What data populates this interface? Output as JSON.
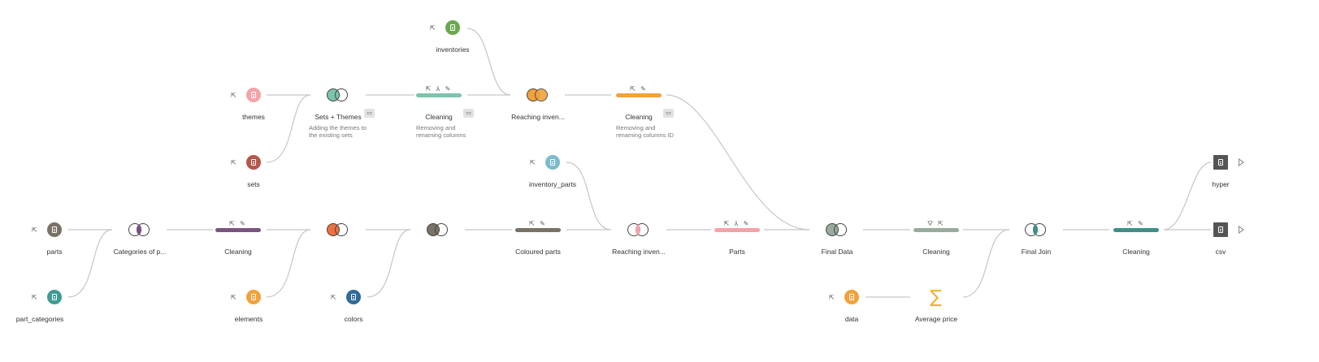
{
  "colors": {
    "edge": "#c6c6c6",
    "themes_input": "#f4a3a8",
    "sets_input": "#b5574b",
    "parts_input": "#7a7266",
    "part_categories_input": "#3f9b93",
    "elements_input": "#f2a23a",
    "colors_input": "#2f6b99",
    "inventories_input": "#6aa84f",
    "inventory_parts_input": "#7ebbcc",
    "data_input": "#f2a23a",
    "output": "#555555"
  },
  "nodes": {
    "inventories": {
      "label": "inventories"
    },
    "themes": {
      "label": "themes"
    },
    "sets": {
      "label": "sets"
    },
    "sets_themes": {
      "label": "Sets + Themes",
      "description": "Adding the themes to\nthe existing sets"
    },
    "cleaning1": {
      "label": "Cleaning",
      "description": "Removing and\nrenaming columns"
    },
    "reaching_inv1": {
      "label": "Reaching inven..."
    },
    "cleaning2": {
      "label": "Cleaning",
      "description": "Removing and\nrenaming columns ID"
    },
    "inventory_parts": {
      "label": "inventory_parts"
    },
    "parts": {
      "label": "parts"
    },
    "part_categories": {
      "label": "part_categories"
    },
    "categories_of_p": {
      "label": "Categories of p..."
    },
    "cleaning3": {
      "label": "Cleaning"
    },
    "elements": {
      "label": "elements"
    },
    "join_elements": {
      "label": ""
    },
    "colors": {
      "label": "colors"
    },
    "join_colors": {
      "label": ""
    },
    "coloured_parts": {
      "label": "Coloured parts"
    },
    "reaching_inv2": {
      "label": "Reaching inven..."
    },
    "parts_step": {
      "label": "Parts"
    },
    "final_data": {
      "label": "Final Data"
    },
    "cleaning4": {
      "label": "Cleaning"
    },
    "data": {
      "label": "data"
    },
    "average_price": {
      "label": "Average price"
    },
    "final_join": {
      "label": "Final Join"
    },
    "cleaning5": {
      "label": "Cleaning"
    },
    "hyper": {
      "label": "hyper"
    },
    "csv": {
      "label": "csv"
    }
  }
}
